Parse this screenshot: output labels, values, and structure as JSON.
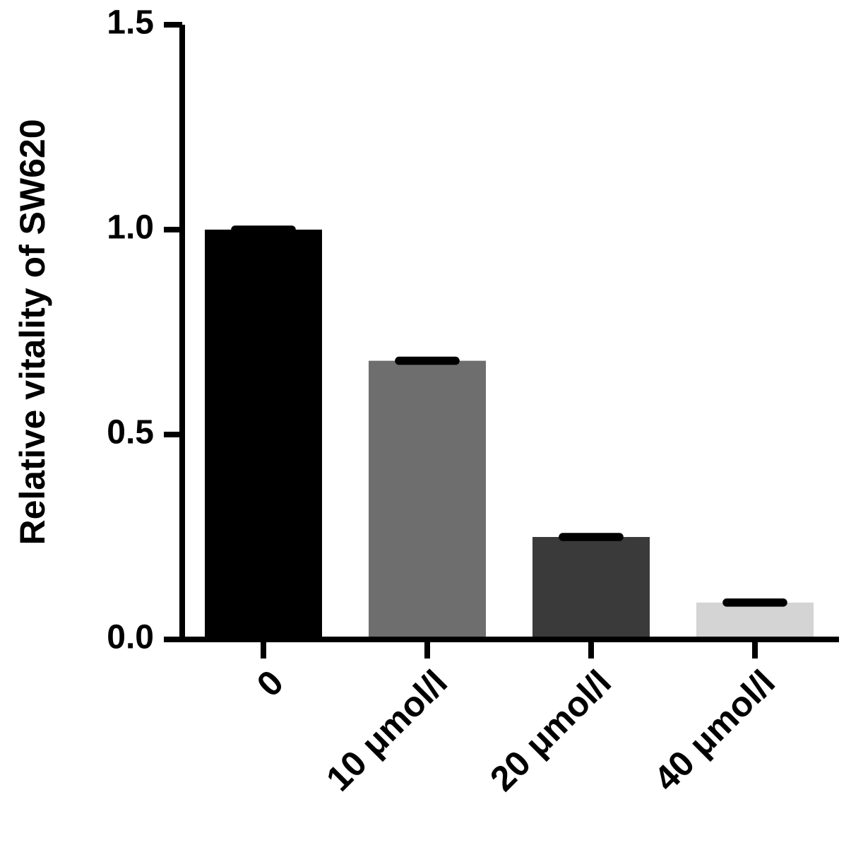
{
  "chart_data": {
    "type": "bar",
    "ylabel": "Relative vitality of SW620",
    "categories": [
      "0",
      "10 μmol/l",
      "20 μmol/l",
      "40 μmol/l"
    ],
    "values": [
      1.0,
      0.68,
      0.25,
      0.09
    ],
    "errors": [
      0.01,
      0.01,
      0.01,
      0.01
    ],
    "colors": [
      "#000000",
      "#6e6e6e",
      "#3a3a3a",
      "#d4d4d4"
    ],
    "ylim": [
      0,
      1.5
    ],
    "yticks": [
      {
        "value": 0,
        "label": "0.0"
      },
      0.5,
      {
        "value": 1,
        "label": "1.0"
      },
      1.5
    ],
    "grid": false
  }
}
